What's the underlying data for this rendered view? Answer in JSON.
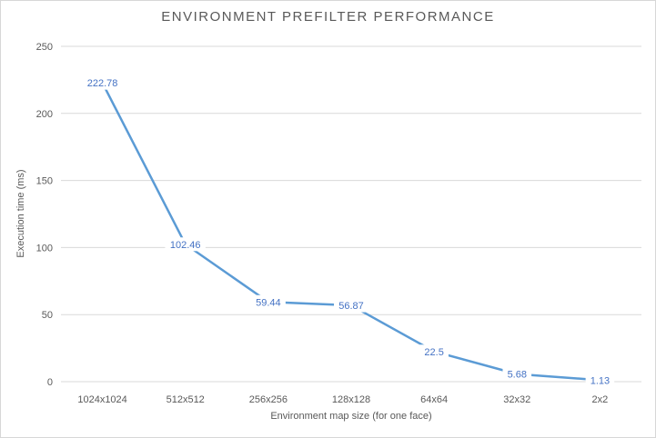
{
  "chart_data": {
    "type": "line",
    "title": "ENVIRONMENT PREFILTER PERFORMANCE",
    "categories": [
      "1024x1024",
      "512x512",
      "256x256",
      "128x128",
      "64x64",
      "32x32",
      "2x2"
    ],
    "values": [
      222.78,
      102.46,
      59.44,
      56.87,
      22.5,
      5.68,
      1.13
    ],
    "data_labels": [
      "222.78",
      "102.46",
      "59.44",
      "56.87",
      "22.5",
      "5.68",
      "1.13"
    ],
    "xlabel": "Environment map size (for one face)",
    "ylabel": "Execution time (ms)",
    "ylim": [
      0,
      250
    ],
    "yticks": [
      0,
      50,
      100,
      150,
      200,
      250
    ],
    "grid": "horizontal-only",
    "legend": "none",
    "marker": "none",
    "colors": {
      "line": "#5b9bd5",
      "data_label": "#4472c4",
      "axis_text": "#595959",
      "title_text": "#595959",
      "gridline": "#d9d9d9",
      "border": "#d7d7d7",
      "background": "#ffffff"
    }
  }
}
